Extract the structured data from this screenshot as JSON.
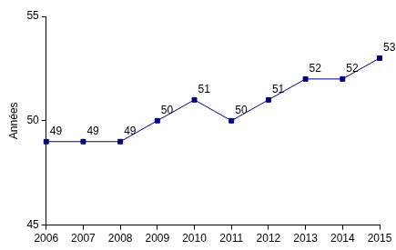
{
  "chart_data": {
    "type": "line",
    "y_label": "Années",
    "categories": [
      "2006",
      "2007",
      "2008",
      "2009",
      "2010",
      "2011",
      "2012",
      "2013",
      "2014",
      "2015"
    ],
    "values": [
      49,
      49,
      49,
      50,
      51,
      50,
      51,
      52,
      52,
      53
    ],
    "color": "#000080",
    "marker": "square",
    "line_style": "solid",
    "ylim": [
      45,
      55
    ],
    "yticks": [
      45,
      50,
      55
    ],
    "grid": false,
    "data_labels": true
  }
}
